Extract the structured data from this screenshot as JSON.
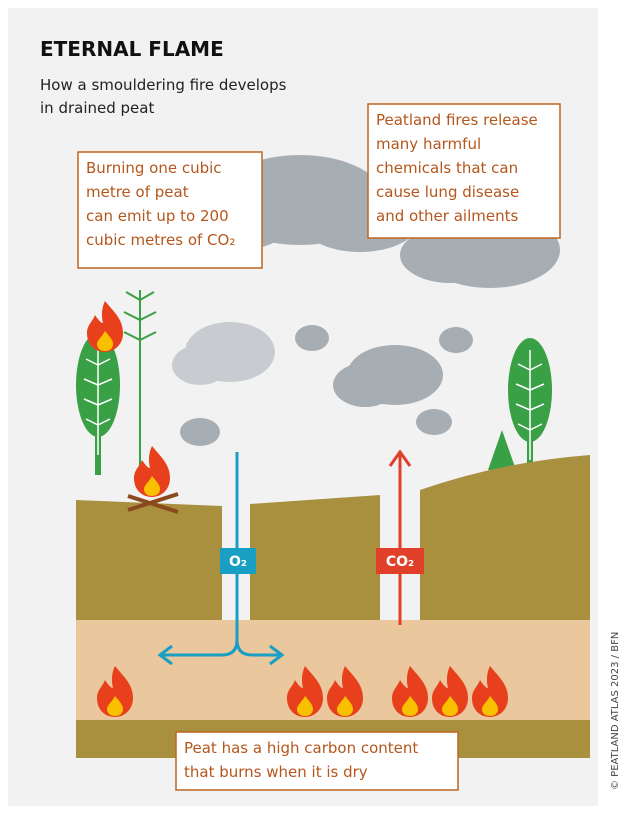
{
  "header": {
    "title": "ETERNAL FLAME",
    "subtitle_lines": [
      "How a smouldering fire develops",
      "in drained peat"
    ]
  },
  "callouts": [
    {
      "lines": [
        "Burning one cubic",
        "metre of peat",
        "can emit up to 200",
        "cubic metres of CO₂"
      ]
    },
    {
      "lines": [
        "Peatland fires release",
        "many harmful",
        "chemicals that can",
        "cause lung disease",
        "and other ailments"
      ]
    },
    {
      "lines": [
        "Peat has a high carbon content",
        "that burns when it is dry"
      ]
    }
  ],
  "labels": {
    "oxygen": "O₂",
    "carbon_dioxide": "CO₂"
  },
  "credit": "© PEATLAND ATLAS 2023 / BFN"
}
